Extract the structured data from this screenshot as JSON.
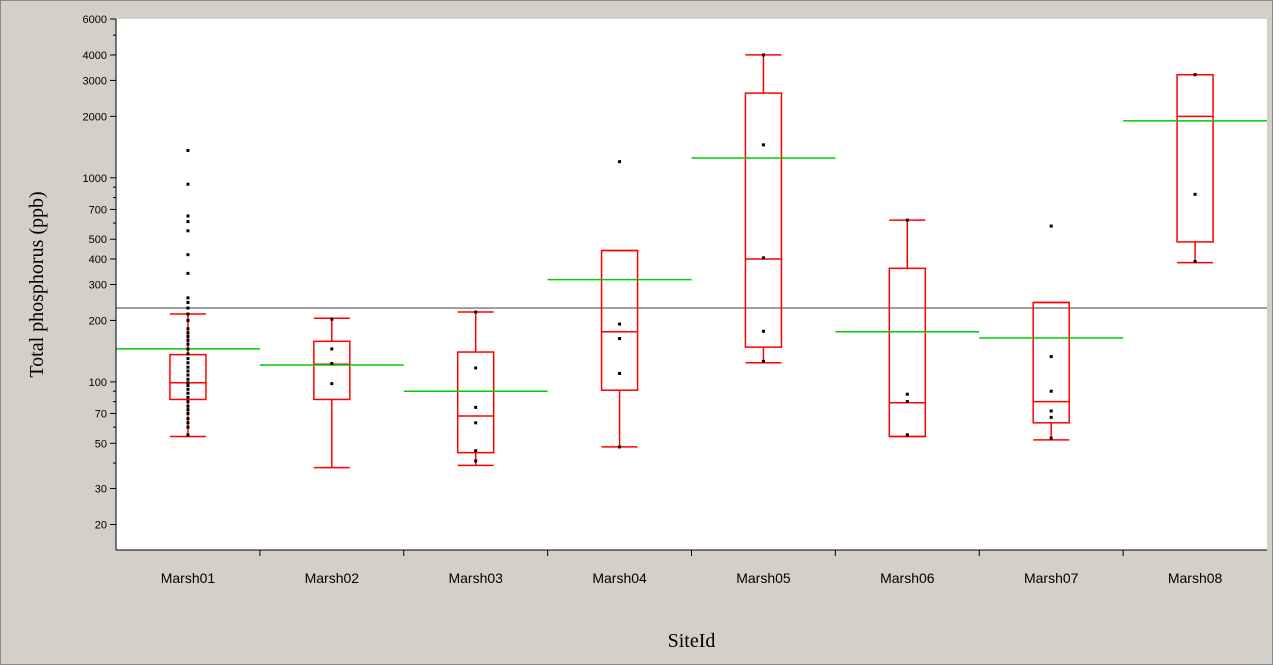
{
  "chart_data": {
    "type": "box",
    "xlabel": "SiteId",
    "ylabel": "Total phosphorus (ppb)",
    "yscale": "log",
    "ylim": [
      15,
      6000
    ],
    "yticks": [
      {
        "value": 6000,
        "label": "6000"
      },
      {
        "value": 4000,
        "label": "4000"
      },
      {
        "value": 3000,
        "label": "3000"
      },
      {
        "value": 2000,
        "label": "2000"
      },
      {
        "value": 1000,
        "label": "1000"
      },
      {
        "value": 700,
        "label": "700"
      },
      {
        "value": 500,
        "label": "500"
      },
      {
        "value": 400,
        "label": "400"
      },
      {
        "value": 300,
        "label": "300"
      },
      {
        "value": 200,
        "label": "200"
      },
      {
        "value": 100,
        "label": "100"
      },
      {
        "value": 70,
        "label": "70"
      },
      {
        "value": 50,
        "label": "50"
      },
      {
        "value": 30,
        "label": "30"
      },
      {
        "value": 20,
        "label": "20"
      }
    ],
    "reference_line": {
      "value": 230,
      "color": "#808080"
    },
    "colors": {
      "box": "#ff0000",
      "mean": "#00cc00",
      "point": "#000000",
      "axis": "#000000",
      "plot_bg": "#ffffff"
    },
    "categories": [
      "Marsh01",
      "Marsh02",
      "Marsh03",
      "Marsh04",
      "Marsh05",
      "Marsh06",
      "Marsh07",
      "Marsh08"
    ],
    "boxes": [
      {
        "whisker_low": 54,
        "q1": 82,
        "median": 99,
        "q3": 136,
        "whisker_high": 215,
        "mean": 145,
        "points": [
          55,
          60,
          63,
          66,
          70,
          73,
          76,
          80,
          84,
          88,
          92,
          96,
          99,
          103,
          108,
          113,
          118,
          124,
          130,
          137,
          145,
          153,
          160,
          167,
          174,
          182,
          200,
          215,
          230,
          245,
          258,
          340,
          420,
          550,
          610,
          650,
          930,
          1360
        ]
      },
      {
        "whisker_low": 38,
        "q1": 82,
        "median": 122,
        "q3": 158,
        "whisker_high": 205,
        "mean": 121,
        "points": [
          98,
          123,
          145,
          203
        ]
      },
      {
        "whisker_low": 39,
        "q1": 45,
        "median": 68,
        "q3": 140,
        "whisker_high": 220,
        "mean": 90,
        "points": [
          41,
          46,
          63,
          75,
          117,
          220
        ]
      },
      {
        "whisker_low": 48,
        "q1": 91,
        "median": 176,
        "q3": 440,
        "whisker_high": 440,
        "mean": 317,
        "points": [
          48,
          110,
          163,
          192,
          1200
        ]
      },
      {
        "whisker_low": 124,
        "q1": 148,
        "median": 400,
        "q3": 2600,
        "whisker_high": 4000,
        "mean": 1250,
        "points": [
          126,
          177,
          405,
          1450,
          4000
        ]
      },
      {
        "whisker_low": 54,
        "q1": 54,
        "median": 79,
        "q3": 360,
        "whisker_high": 620,
        "mean": 176,
        "points": [
          55,
          80,
          87,
          620
        ]
      },
      {
        "whisker_low": 52,
        "q1": 63,
        "median": 80,
        "q3": 245,
        "whisker_high": 245,
        "mean": 164,
        "points": [
          53,
          67,
          72,
          90,
          133,
          580
        ]
      },
      {
        "whisker_low": 384,
        "q1": 485,
        "median": 2000,
        "q3": 3200,
        "whisker_high": 3200,
        "mean": 1900,
        "points": [
          389,
          830,
          3200
        ]
      }
    ]
  }
}
